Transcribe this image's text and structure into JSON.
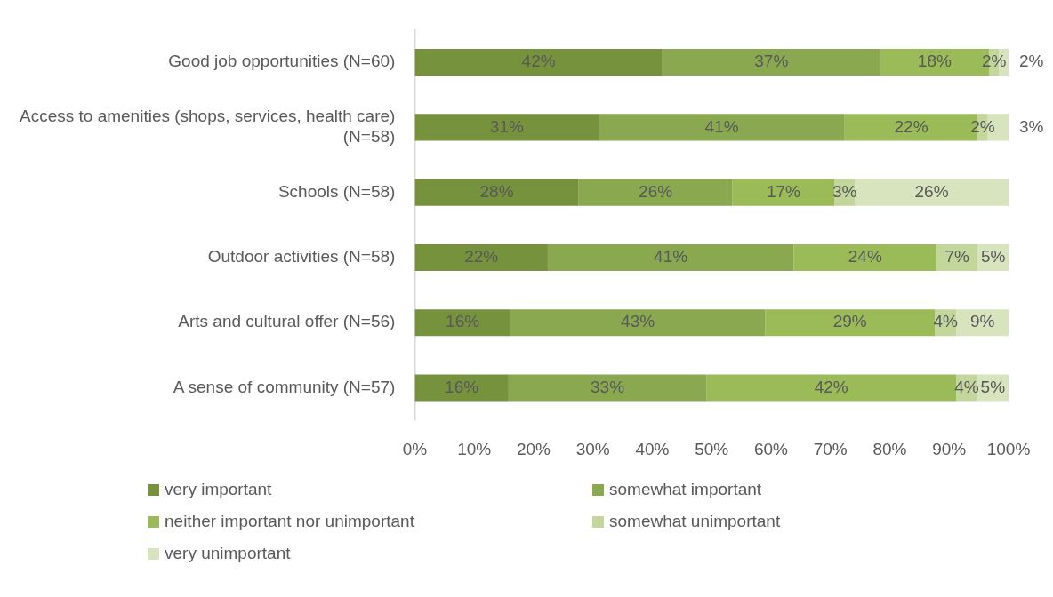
{
  "chart_data": {
    "type": "bar",
    "orientation": "horizontal",
    "stacked": true,
    "categories": [
      "Good job opportunities (N=60)",
      "Access to amenities (shops, services, health care) (N=58)",
      "Schools (N=58)",
      "Outdoor activities (N=58)",
      "Arts and cultural offer (N=56)",
      "A sense of community (N=57)"
    ],
    "series": [
      {
        "name": "very important",
        "color": "#76923c",
        "values": [
          41.7,
          31.0,
          27.6,
          22.4,
          16.1,
          15.8
        ],
        "value_labels": [
          "42%",
          "31%",
          "28%",
          "22%",
          "16%",
          "16%"
        ]
      },
      {
        "name": "somewhat important",
        "color": "#8aa84f",
        "values": [
          36.7,
          41.4,
          25.9,
          41.4,
          42.9,
          33.3
        ],
        "value_labels": [
          "37%",
          "41%",
          "26%",
          "41%",
          "43%",
          "33%"
        ]
      },
      {
        "name": "neither important nor unimportant",
        "color": "#9bbb59",
        "values": [
          18.3,
          22.4,
          17.2,
          24.1,
          28.6,
          42.1
        ],
        "value_labels": [
          "18%",
          "22%",
          "17%",
          "24%",
          "29%",
          "42%"
        ]
      },
      {
        "name": "somewhat unimportant",
        "color": "#c3d69b",
        "values": [
          1.7,
          1.7,
          3.4,
          6.9,
          3.6,
          3.5
        ],
        "value_labels": [
          "2%",
          "2%",
          "3%",
          "7%",
          "4%",
          "4%"
        ]
      },
      {
        "name": "very unimportant",
        "color": "#d7e4bd",
        "values": [
          1.6,
          3.5,
          25.9,
          5.2,
          8.8,
          5.3
        ],
        "value_labels": [
          "2%",
          "3%",
          "26%",
          "5%",
          "9%",
          "5%"
        ]
      }
    ],
    "xlim": [
      0,
      100
    ],
    "xticks": [
      {
        "value": 0,
        "label": "0%"
      },
      {
        "value": 10,
        "label": "10%"
      },
      {
        "value": 20,
        "label": "20%"
      },
      {
        "value": 30,
        "label": "30%"
      },
      {
        "value": 40,
        "label": "40%"
      },
      {
        "value": 50,
        "label": "50%"
      },
      {
        "value": 60,
        "label": "60%"
      },
      {
        "value": 70,
        "label": "70%"
      },
      {
        "value": 80,
        "label": "80%"
      },
      {
        "value": 90,
        "label": "90%"
      },
      {
        "value": 100,
        "label": "100%"
      }
    ],
    "grid": false,
    "legend": "bottom"
  }
}
